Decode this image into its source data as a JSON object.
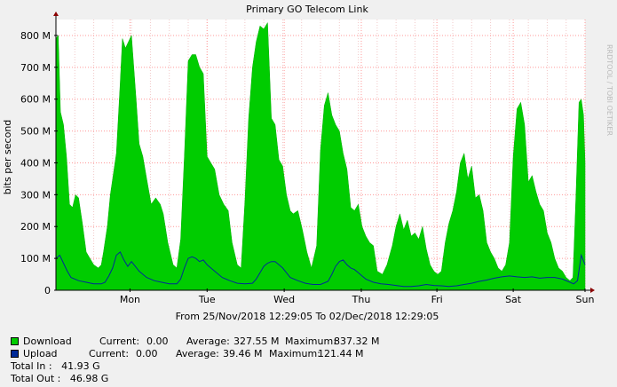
{
  "chart_data": {
    "type": "area",
    "title": "Primary GO Telecom Link",
    "ylabel": "bits per second",
    "xlabel": "From 25/Nov/2018 12:29:05 To 02/Dec/2018 12:29:05",
    "watermark": "RRDTOOL / TOBI OETIKER",
    "x_unit": "days since From date (25/Nov/2018 12:29:05)",
    "xlim": [
      0,
      7
    ],
    "ylim": [
      0,
      850
    ],
    "y_unit": "M bits per second",
    "y_ticks": [
      0,
      100,
      200,
      300,
      400,
      500,
      600,
      700,
      800
    ],
    "y_tick_labels": [
      "0",
      "100 M",
      "200 M",
      "300 M",
      "400 M",
      "500 M",
      "600 M",
      "700 M",
      "800 M"
    ],
    "x_ticks": [
      0.98,
      2.0,
      3.02,
      4.04,
      5.04,
      6.05,
      7.0
    ],
    "x_tick_labels": [
      "Mon",
      "Tue",
      "Wed",
      "Thu",
      "Fri",
      "Sat",
      "Sun"
    ],
    "grid": true,
    "colors": {
      "download": "#00cc00",
      "upload": "#002a97",
      "grid": "#ff9999",
      "frame": "#ffffff"
    },
    "series": [
      {
        "name": "Download",
        "x": [
          0.0,
          0.03,
          0.06,
          0.1,
          0.14,
          0.18,
          0.22,
          0.26,
          0.3,
          0.35,
          0.4,
          0.45,
          0.5,
          0.56,
          0.6,
          0.63,
          0.68,
          0.72,
          0.8,
          0.85,
          0.88,
          0.92,
          0.96,
          1.0,
          1.03,
          1.06,
          1.1,
          1.15,
          1.2,
          1.26,
          1.32,
          1.38,
          1.42,
          1.48,
          1.55,
          1.6,
          1.65,
          1.7,
          1.75,
          1.8,
          1.85,
          1.9,
          1.95,
          2.0,
          2.05,
          2.1,
          2.16,
          2.22,
          2.28,
          2.33,
          2.4,
          2.45,
          2.5,
          2.55,
          2.6,
          2.65,
          2.7,
          2.75,
          2.8,
          2.85,
          2.9,
          2.95,
          3.0,
          3.05,
          3.1,
          3.14,
          3.2,
          3.26,
          3.32,
          3.38,
          3.45,
          3.5,
          3.55,
          3.6,
          3.65,
          3.7,
          3.75,
          3.8,
          3.85,
          3.9,
          3.95,
          4.0,
          4.05,
          4.1,
          4.15,
          4.2,
          4.25,
          4.32,
          4.38,
          4.45,
          4.5,
          4.55,
          4.6,
          4.65,
          4.7,
          4.75,
          4.8,
          4.85,
          4.9,
          4.95,
          5.0,
          5.05,
          5.1,
          5.15,
          5.2,
          5.25,
          5.3,
          5.35,
          5.4,
          5.45,
          5.5,
          5.55,
          5.6,
          5.65,
          5.7,
          5.75,
          5.8,
          5.85,
          5.9,
          5.95,
          6.0,
          6.05,
          6.1,
          6.15,
          6.2,
          6.25,
          6.3,
          6.35,
          6.4,
          6.45,
          6.5,
          6.55,
          6.6,
          6.65,
          6.7,
          6.75,
          6.8,
          6.84,
          6.88,
          6.92,
          6.95,
          6.98,
          7.0
        ],
        "values": [
          790,
          800,
          560,
          520,
          420,
          270,
          260,
          300,
          290,
          210,
          120,
          100,
          80,
          70,
          80,
          120,
          200,
          300,
          430,
          650,
          790,
          760,
          780,
          800,
          700,
          600,
          460,
          420,
          350,
          270,
          290,
          270,
          240,
          150,
          80,
          70,
          160,
          420,
          720,
          740,
          740,
          700,
          680,
          420,
          400,
          380,
          300,
          270,
          250,
          150,
          80,
          70,
          280,
          540,
          700,
          780,
          830,
          820,
          840,
          540,
          520,
          410,
          390,
          300,
          250,
          240,
          250,
          190,
          120,
          70,
          140,
          440,
          580,
          620,
          550,
          520,
          500,
          430,
          380,
          260,
          250,
          270,
          200,
          170,
          150,
          140,
          60,
          50,
          80,
          140,
          200,
          240,
          190,
          220,
          170,
          180,
          160,
          200,
          130,
          80,
          60,
          50,
          60,
          150,
          210,
          250,
          310,
          400,
          430,
          350,
          390,
          290,
          300,
          250,
          150,
          120,
          100,
          70,
          60,
          80,
          150,
          420,
          570,
          590,
          520,
          340,
          360,
          310,
          270,
          250,
          180,
          150,
          100,
          70,
          60,
          40,
          30,
          40,
          300,
          590,
          600,
          550,
          400
        ]
      },
      {
        "name": "Upload",
        "x": [
          0.0,
          0.05,
          0.1,
          0.15,
          0.2,
          0.3,
          0.4,
          0.5,
          0.6,
          0.65,
          0.7,
          0.75,
          0.8,
          0.85,
          0.9,
          0.95,
          1.0,
          1.05,
          1.1,
          1.2,
          1.3,
          1.4,
          1.5,
          1.6,
          1.65,
          1.7,
          1.75,
          1.8,
          1.85,
          1.9,
          1.95,
          2.0,
          2.05,
          2.1,
          2.2,
          2.3,
          2.4,
          2.5,
          2.6,
          2.65,
          2.7,
          2.75,
          2.8,
          2.85,
          2.9,
          2.95,
          3.0,
          3.05,
          3.1,
          3.2,
          3.3,
          3.4,
          3.5,
          3.6,
          3.65,
          3.7,
          3.75,
          3.8,
          3.85,
          3.9,
          3.95,
          4.0,
          4.05,
          4.1,
          4.2,
          4.3,
          4.4,
          4.5,
          4.6,
          4.7,
          4.8,
          4.9,
          5.0,
          5.1,
          5.2,
          5.3,
          5.4,
          5.5,
          5.6,
          5.7,
          5.8,
          5.9,
          6.0,
          6.1,
          6.2,
          6.3,
          6.4,
          6.5,
          6.6,
          6.7,
          6.8,
          6.85,
          6.9,
          6.95,
          7.0
        ],
        "values": [
          100,
          110,
          85,
          60,
          40,
          30,
          25,
          20,
          20,
          25,
          45,
          70,
          110,
          120,
          95,
          75,
          90,
          75,
          60,
          40,
          30,
          25,
          20,
          20,
          35,
          70,
          100,
          105,
          100,
          90,
          95,
          80,
          70,
          60,
          40,
          30,
          22,
          20,
          22,
          35,
          55,
          75,
          85,
          90,
          90,
          80,
          70,
          55,
          40,
          30,
          22,
          18,
          18,
          28,
          50,
          75,
          90,
          95,
          80,
          70,
          65,
          55,
          45,
          35,
          25,
          20,
          18,
          15,
          12,
          12,
          14,
          18,
          15,
          14,
          12,
          14,
          18,
          22,
          28,
          32,
          38,
          42,
          45,
          42,
          40,
          42,
          38,
          40,
          40,
          35,
          25,
          20,
          30,
          110,
          80
        ]
      }
    ]
  },
  "legend": {
    "rows": [
      {
        "name": "Download",
        "current_label": "Current:",
        "current": "0.00",
        "average_label": "Average:",
        "average": "327.55 M",
        "maximum_label": "Maximum:",
        "maximum": "837.32 M",
        "color": "#00cc00"
      },
      {
        "name": "Upload",
        "current_label": "Current:",
        "current": "0.00",
        "average_label": "Average:",
        "average": "39.46 M",
        "maximum_label": "Maximum:",
        "maximum": "121.44 M",
        "color": "#002a97"
      }
    ],
    "total_in": "Total In :   41.93 G",
    "total_out": "Total Out :   46.98 G"
  }
}
